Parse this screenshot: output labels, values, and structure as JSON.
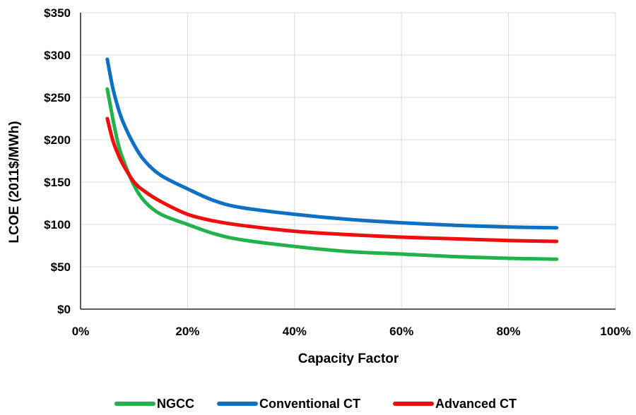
{
  "chart_data": {
    "type": "line",
    "title": "",
    "xlabel": "Capacity Factor",
    "ylabel": "LCOE (2011$/MWh)",
    "xlim": [
      0,
      100
    ],
    "ylim": [
      0,
      350
    ],
    "x_ticks": [
      0,
      20,
      40,
      60,
      80,
      100
    ],
    "x_tick_labels": [
      "0%",
      "20%",
      "40%",
      "60%",
      "80%",
      "100%"
    ],
    "y_ticks": [
      0,
      50,
      100,
      150,
      200,
      250,
      300,
      350
    ],
    "y_tick_labels": [
      "$0",
      "$50",
      "$100",
      "$150",
      "$200",
      "$250",
      "$300",
      "$350"
    ],
    "grid": true,
    "legend_position": "bottom",
    "x": [
      5,
      6,
      7,
      8,
      10,
      12,
      15,
      20,
      25,
      30,
      40,
      50,
      60,
      70,
      80,
      89
    ],
    "series": [
      {
        "name": "NGCC",
        "color": "#21b24b",
        "values": [
          260,
          226,
          196,
          176,
          146,
          127,
          112,
          100,
          89,
          82,
          74,
          68,
          65,
          62,
          60,
          59
        ]
      },
      {
        "name": "Conventional CT",
        "color": "#0e6fc4",
        "values": [
          295,
          262,
          238,
          220,
          194,
          175,
          158,
          142,
          128,
          120,
          112,
          106,
          102,
          99,
          97,
          96
        ]
      },
      {
        "name": "Advanced CT",
        "color": "#f00d0d",
        "values": [
          225,
          200,
          183,
          170,
          150,
          139,
          127,
          112,
          104,
          99,
          92,
          88,
          85,
          83,
          81,
          80
        ]
      }
    ]
  }
}
